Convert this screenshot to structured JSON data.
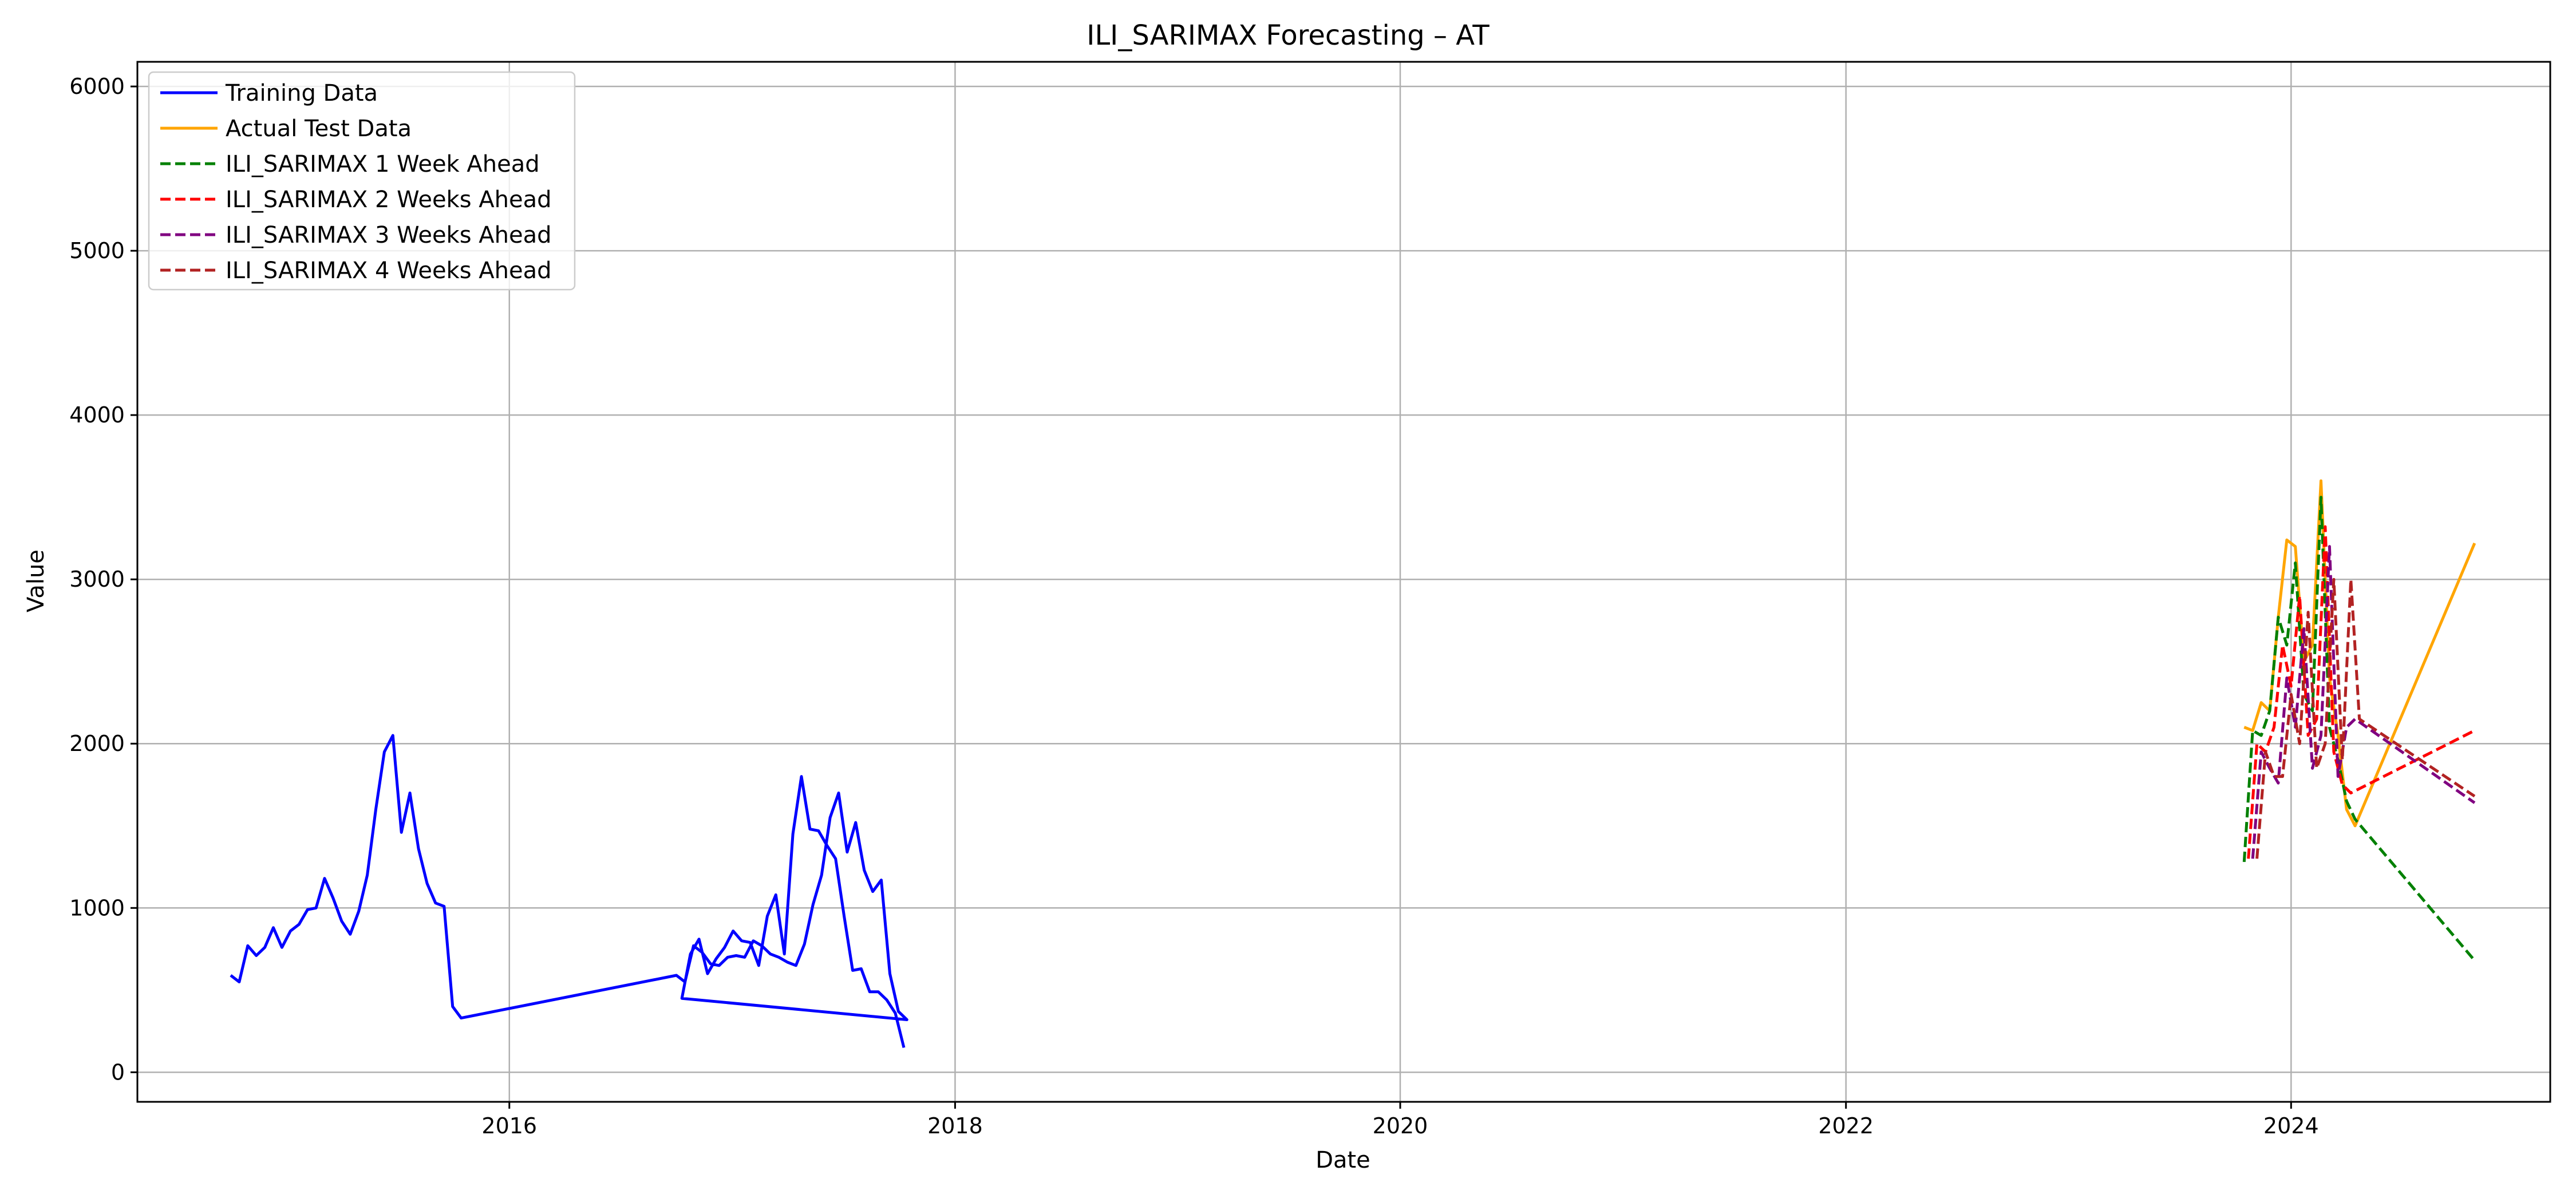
{
  "chart_data": {
    "type": "line",
    "title": "ILI_SARIMAX Forecasting – AT",
    "xlabel": "Date",
    "ylabel": "Value",
    "xlim": [
      "2014-05-01",
      "2025-03-01"
    ],
    "ylim": [
      -180,
      6150
    ],
    "x_ticks": [
      "2016",
      "2018",
      "2020",
      "2022",
      "2024"
    ],
    "y_ticks": [
      0,
      1000,
      2000,
      3000,
      4000,
      5000,
      6000
    ],
    "grid": true,
    "legend_position": "top-left",
    "colors": {
      "training": "#0000ff",
      "actual": "#ffa500",
      "w1": "#008000",
      "w2": "#ff0000",
      "w3": "#800080",
      "w4": "#b22222"
    },
    "series": [
      {
        "name": "Training Data",
        "style": "solid",
        "color_key": "training",
        "points": [
          [
            "2014-10-01",
            590
          ],
          [
            "2014-10-15",
            550
          ],
          [
            "2014-10-29",
            770
          ],
          [
            "2014-11-12",
            710
          ],
          [
            "2014-11-26",
            760
          ],
          [
            "2014-12-10",
            880
          ],
          [
            "2014-12-24",
            760
          ],
          [
            "2015-01-07",
            860
          ],
          [
            "2015-01-21",
            900
          ],
          [
            "2015-02-04",
            990
          ],
          [
            "2015-02-18",
            1000
          ],
          [
            "2015-03-04",
            1180
          ],
          [
            "2015-03-18",
            1060
          ],
          [
            "2015-04-01",
            920
          ],
          [
            "2015-04-15",
            840
          ],
          [
            "2015-04-29",
            980
          ],
          [
            "2015-05-13",
            1200
          ],
          [
            "2015-05-27",
            1600
          ],
          [
            "2015-06-10",
            1950
          ],
          [
            "2015-06-24",
            2050
          ],
          [
            "2015-07-08",
            1460
          ],
          [
            "2015-07-22",
            1700
          ],
          [
            "2015-08-05",
            1360
          ],
          [
            "2015-08-19",
            1150
          ],
          [
            "2015-09-02",
            1030
          ],
          [
            "2015-09-16",
            1010
          ],
          [
            "2015-09-30",
            400
          ],
          [
            "2015-10-14",
            330
          ],
          [
            "2016-10-01",
            590
          ],
          [
            "2016-10-15",
            550
          ],
          [
            "2016-10-29",
            770
          ],
          [
            "2016-11-12",
            730
          ],
          [
            "2016-11-26",
            660
          ],
          [
            "2016-12-10",
            650
          ],
          [
            "2016-12-24",
            700
          ],
          [
            "2017-01-07",
            710
          ],
          [
            "2017-01-21",
            700
          ],
          [
            "2017-02-04",
            800
          ],
          [
            "2017-02-18",
            770
          ],
          [
            "2017-03-04",
            720
          ],
          [
            "2017-03-18",
            700
          ],
          [
            "2017-04-01",
            670
          ],
          [
            "2017-04-15",
            650
          ],
          [
            "2017-04-29",
            780
          ],
          [
            "2017-05-13",
            1020
          ],
          [
            "2017-05-27",
            1200
          ],
          [
            "2017-06-10",
            1550
          ],
          [
            "2017-06-24",
            1700
          ],
          [
            "2017-07-08",
            1340
          ],
          [
            "2017-07-22",
            1520
          ],
          [
            "2017-08-05",
            1230
          ],
          [
            "2017-08-19",
            1100
          ],
          [
            "2017-09-02",
            1170
          ],
          [
            "2017-09-16",
            600
          ],
          [
            "2017-09-30",
            370
          ],
          [
            "2017-10-14",
            320
          ],
          [
            "2016-10-10",
            450
          ],
          [
            "2016-10-24",
            720
          ],
          [
            "2016-11-07",
            810
          ],
          [
            "2016-11-21",
            600
          ],
          [
            "2016-12-05",
            690
          ],
          [
            "2016-12-19",
            760
          ],
          [
            "2017-01-02",
            860
          ],
          [
            "2017-01-16",
            800
          ],
          [
            "2017-01-30",
            790
          ],
          [
            "2017-02-13",
            650
          ],
          [
            "2017-02-27",
            950
          ],
          [
            "2017-03-13",
            1080
          ],
          [
            "2017-03-27",
            720
          ],
          [
            "2017-04-10",
            1450
          ],
          [
            "2017-04-24",
            1800
          ],
          [
            "2017-05-08",
            1480
          ],
          [
            "2017-05-22",
            1470
          ],
          [
            "2017-06-05",
            1380
          ],
          [
            "2017-06-19",
            1300
          ],
          [
            "2017-07-03",
            950
          ],
          [
            "2017-07-17",
            620
          ],
          [
            "2017-07-31",
            630
          ],
          [
            "2017-08-14",
            490
          ],
          [
            "2017-08-28",
            490
          ],
          [
            "2017-09-11",
            440
          ],
          [
            "2017-09-25",
            360
          ],
          [
            "2017-10-09",
            150
          ]
        ]
      },
      {
        "name": "Actual Test Data",
        "style": "solid",
        "color_key": "actual",
        "points": [
          [
            "2023-10-16",
            2100
          ],
          [
            "2023-10-30",
            2080
          ],
          [
            "2023-11-13",
            2250
          ],
          [
            "2023-11-27",
            2200
          ],
          [
            "2023-12-11",
            2770
          ],
          [
            "2023-12-25",
            3240
          ],
          [
            "2024-01-08",
            3200
          ],
          [
            "2024-01-22",
            2500
          ],
          [
            "2024-02-05",
            2600
          ],
          [
            "2024-02-19",
            3600
          ],
          [
            "2024-03-04",
            2400
          ],
          [
            "2024-03-18",
            2050
          ],
          [
            "2024-04-01",
            1600
          ],
          [
            "2024-04-15",
            1500
          ],
          [
            "2024-10-28",
            3220
          ]
        ]
      },
      {
        "name": "ILI_SARIMAX 1 Week Ahead",
        "style": "dashed",
        "color_key": "w1",
        "points": [
          [
            "2023-10-16",
            1280
          ],
          [
            "2023-10-30",
            2080
          ],
          [
            "2023-11-13",
            2050
          ],
          [
            "2023-11-27",
            2200
          ],
          [
            "2023-12-11",
            2770
          ],
          [
            "2023-12-25",
            2600
          ],
          [
            "2024-01-08",
            3100
          ],
          [
            "2024-01-22",
            2300
          ],
          [
            "2024-02-05",
            2200
          ],
          [
            "2024-02-19",
            3500
          ],
          [
            "2024-03-04",
            2100
          ],
          [
            "2024-03-18",
            1900
          ],
          [
            "2024-04-01",
            1650
          ],
          [
            "2024-04-15",
            1540
          ],
          [
            "2024-10-28",
            680
          ]
        ]
      },
      {
        "name": "ILI_SARIMAX 2 Weeks Ahead",
        "style": "dashed",
        "color_key": "w2",
        "points": [
          [
            "2023-10-23",
            1300
          ],
          [
            "2023-11-06",
            2000
          ],
          [
            "2023-11-20",
            1950
          ],
          [
            "2023-12-04",
            2100
          ],
          [
            "2023-12-18",
            2600
          ],
          [
            "2024-01-01",
            2350
          ],
          [
            "2024-01-15",
            2900
          ],
          [
            "2024-01-29",
            2050
          ],
          [
            "2024-02-12",
            2150
          ],
          [
            "2024-02-26",
            3320
          ],
          [
            "2024-03-11",
            1950
          ],
          [
            "2024-03-25",
            1750
          ],
          [
            "2024-04-08",
            1700
          ],
          [
            "2024-10-28",
            2080
          ]
        ]
      },
      {
        "name": "ILI_SARIMAX 3 Weeks Ahead",
        "style": "dashed",
        "color_key": "w3",
        "points": [
          [
            "2023-10-30",
            1300
          ],
          [
            "2023-11-13",
            1950
          ],
          [
            "2023-11-27",
            1850
          ],
          [
            "2023-12-11",
            1760
          ],
          [
            "2023-12-25",
            2400
          ],
          [
            "2024-01-08",
            2100
          ],
          [
            "2024-01-22",
            2700
          ],
          [
            "2024-02-05",
            1850
          ],
          [
            "2024-02-19",
            2050
          ],
          [
            "2024-03-04",
            3200
          ],
          [
            "2024-03-18",
            1800
          ],
          [
            "2024-04-01",
            2100
          ],
          [
            "2024-04-15",
            2150
          ],
          [
            "2024-10-28",
            1640
          ]
        ]
      },
      {
        "name": "ILI_SARIMAX 4 Weeks Ahead",
        "style": "dashed",
        "color_key": "w4",
        "points": [
          [
            "2023-11-06",
            1300
          ],
          [
            "2023-11-20",
            1950
          ],
          [
            "2023-12-04",
            1800
          ],
          [
            "2023-12-18",
            1800
          ],
          [
            "2024-01-01",
            2300
          ],
          [
            "2024-01-15",
            2000
          ],
          [
            "2024-01-29",
            2800
          ],
          [
            "2024-02-12",
            1850
          ],
          [
            "2024-02-26",
            2000
          ],
          [
            "2024-03-11",
            3000
          ],
          [
            "2024-03-25",
            1900
          ],
          [
            "2024-04-08",
            3000
          ],
          [
            "2024-04-22",
            2150
          ],
          [
            "2024-10-28",
            1680
          ]
        ]
      }
    ]
  }
}
